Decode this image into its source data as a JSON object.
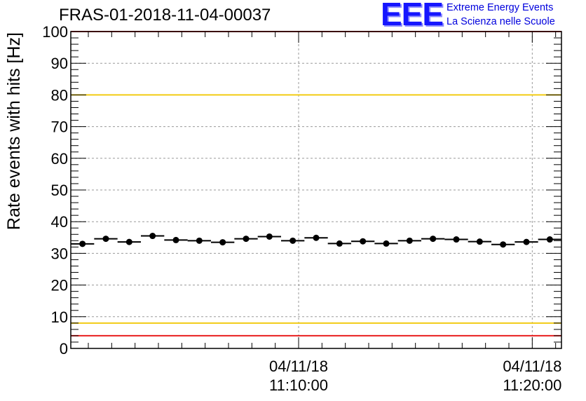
{
  "title": "FRAS-01-2018-11-04-00037",
  "logo": {
    "mark": "EEE",
    "line1": "Extreme Energy Events",
    "line2": "La Scienza nelle Scuole",
    "colors": {
      "mark": "#1515ff",
      "text": "#0000dd"
    }
  },
  "chart_data": {
    "type": "scatter",
    "title": "FRAS-01-2018-11-04-00037",
    "ylabel": "Rate events with hits [Hz]",
    "xlabel": "",
    "ylim": [
      0,
      100
    ],
    "xlim": [
      "11:00:15",
      "11:21:15"
    ],
    "grid": true,
    "yticks": [
      0,
      10,
      20,
      30,
      40,
      50,
      60,
      70,
      80,
      90,
      100
    ],
    "xticks": [
      {
        "value": "11:10:00",
        "date": "04/11/18",
        "time": "11:10:00"
      },
      {
        "value": "11:20:00",
        "date": "04/11/18",
        "time": "11:20:00"
      }
    ],
    "series": [
      {
        "marker": "circle",
        "color": "#000000",
        "error_bar_half_width_seconds": 30,
        "points": [
          {
            "x": "11:00:45",
            "y": 33.0
          },
          {
            "x": "11:01:45",
            "y": 34.6
          },
          {
            "x": "11:02:45",
            "y": 33.6
          },
          {
            "x": "11:03:45",
            "y": 35.5
          },
          {
            "x": "11:04:45",
            "y": 34.2
          },
          {
            "x": "11:05:45",
            "y": 34.0
          },
          {
            "x": "11:06:45",
            "y": 33.5
          },
          {
            "x": "11:07:45",
            "y": 34.6
          },
          {
            "x": "11:08:45",
            "y": 35.3
          },
          {
            "x": "11:09:45",
            "y": 34.0
          },
          {
            "x": "11:10:45",
            "y": 34.9
          },
          {
            "x": "11:11:45",
            "y": 33.1
          },
          {
            "x": "11:12:45",
            "y": 33.8
          },
          {
            "x": "11:13:45",
            "y": 33.1
          },
          {
            "x": "11:14:45",
            "y": 34.0
          },
          {
            "x": "11:15:45",
            "y": 34.6
          },
          {
            "x": "11:16:45",
            "y": 34.4
          },
          {
            "x": "11:17:45",
            "y": 33.7
          },
          {
            "x": "11:18:45",
            "y": 32.8
          },
          {
            "x": "11:19:45",
            "y": 33.6
          },
          {
            "x": "11:20:45",
            "y": 34.4
          }
        ]
      }
    ],
    "reference_lines": [
      {
        "y": 100,
        "color": "#e81e1e"
      },
      {
        "y": 80,
        "color": "#f2cc14"
      },
      {
        "y": 8,
        "color": "#f2cc14"
      },
      {
        "y": 4,
        "color": "#e81e1e"
      }
    ]
  }
}
